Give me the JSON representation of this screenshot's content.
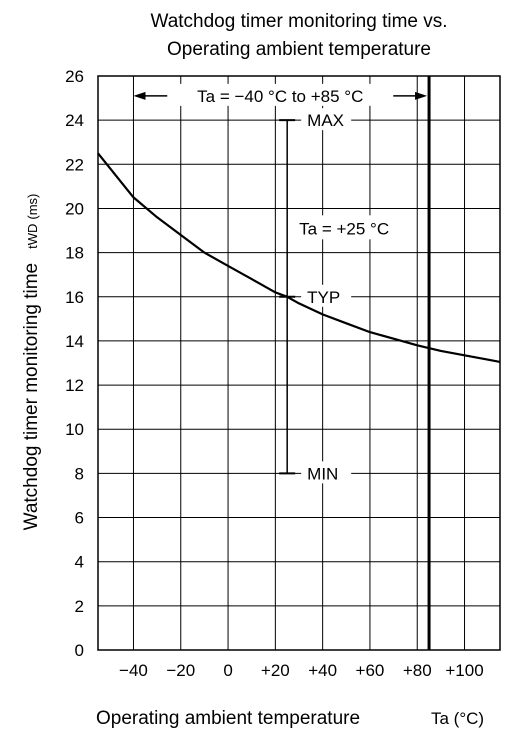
{
  "chart_data": {
    "type": "line",
    "title_line1": "Watchdog timer monitoring time vs.",
    "title_line2": "Operating ambient temperature",
    "ylabel": "Watchdog timer monitoring time",
    "ylabel_symbol": "tWD",
    "ylabel_unit": "(ms)",
    "xlabel": "Operating ambient temperature",
    "xlabel_symbol": "Ta (°C)",
    "xlim": [
      -55,
      115
    ],
    "ylim": [
      0,
      26
    ],
    "x_ticks": [
      -40,
      -20,
      0,
      20,
      40,
      60,
      80,
      100
    ],
    "x_tick_labels": [
      "−40",
      "−20",
      "0",
      "+20",
      "+40",
      "+60",
      "+80",
      "+100"
    ],
    "y_ticks": [
      0,
      2,
      4,
      6,
      8,
      10,
      12,
      14,
      16,
      18,
      20,
      22,
      24,
      26
    ],
    "y_tick_labels": [
      "0",
      "2",
      "4",
      "6",
      "8",
      "10",
      "12",
      "14",
      "16",
      "18",
      "20",
      "22",
      "24",
      "26"
    ],
    "grid": true,
    "series": [
      {
        "x": [
          -55,
          -40,
          -30,
          -20,
          -10,
          0,
          10,
          20,
          25,
          30,
          40,
          50,
          60,
          70,
          80,
          90,
          100,
          110,
          115
        ],
        "y": [
          22.5,
          20.5,
          19.6,
          18.8,
          18.0,
          17.4,
          16.8,
          16.2,
          16.0,
          15.7,
          15.2,
          14.8,
          14.4,
          14.1,
          13.8,
          13.55,
          13.35,
          13.15,
          13.05
        ]
      }
    ],
    "range_annotation": {
      "text": "Ta = −40 °C to +85 °C",
      "from": -40,
      "to": 85,
      "y": 25.1
    },
    "limit_line_x": 85,
    "spec_bar": {
      "x": 25,
      "label_condition": "Ta = +25 °C",
      "max": {
        "label": "MAX",
        "value": 24
      },
      "typ": {
        "label": "TYP",
        "value": 16
      },
      "min": {
        "label": "MIN",
        "value": 8
      }
    }
  }
}
